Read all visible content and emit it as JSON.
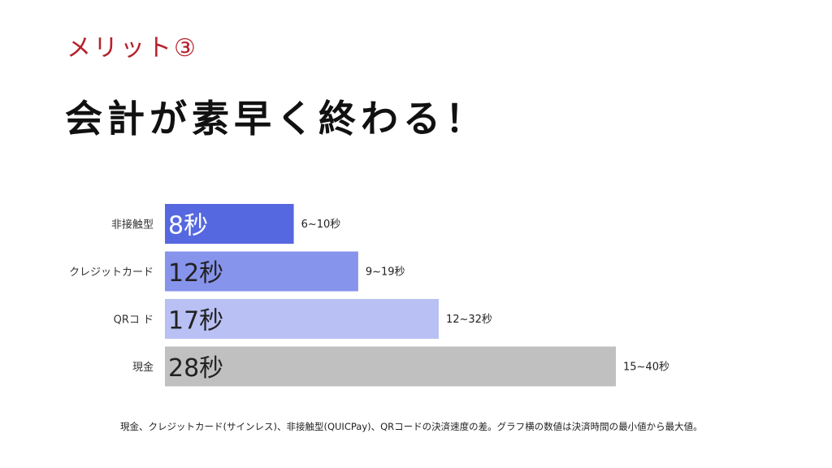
{
  "slide": {
    "subtitle": "メリット③",
    "title": "会計が素早く終わる！",
    "caption": "現金、クレジットカード(サインレス)、非接触型(QUICPay)、QRコードの決済速度の差。グラフ横の数値は決済時間の最小値から最大値。"
  },
  "chart_data": {
    "type": "bar",
    "orientation": "horizontal",
    "categories": [
      "非接触型",
      "クレジットカード",
      "QRコ ド",
      "現金"
    ],
    "values": [
      8,
      12,
      17,
      28
    ],
    "value_labels": [
      "8秒",
      "12秒",
      "17秒",
      "28秒"
    ],
    "range_labels": [
      "6~10秒",
      "9~19秒",
      "12~32秒",
      "15~40秒"
    ],
    "colors": [
      "#5668e0",
      "#8794ec",
      "#b8c0f4",
      "#c0c0c0"
    ],
    "xlim": [
      0,
      30
    ],
    "grid": false,
    "legend": "none"
  }
}
